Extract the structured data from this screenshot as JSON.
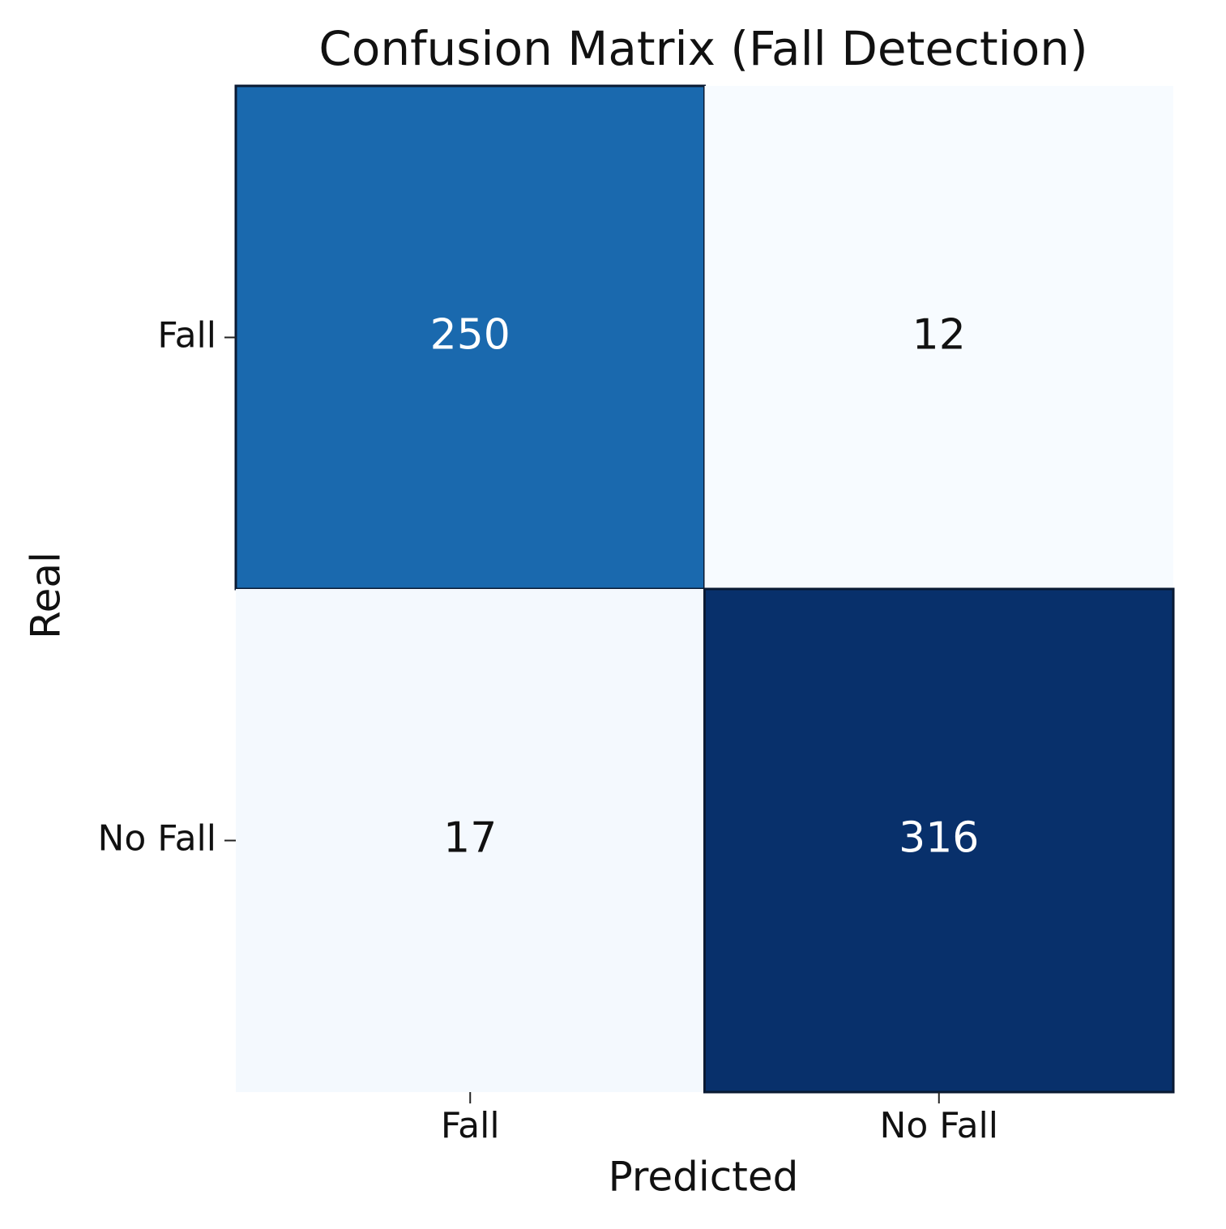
{
  "chart_data": {
    "type": "heatmap",
    "title": "Confusion Matrix (Fall Detection)",
    "x_label": "Predicted",
    "y_label": "Real",
    "x_categories": [
      "Fall",
      "No Fall"
    ],
    "y_categories": [
      "Fall",
      "No Fall"
    ],
    "values": [
      [
        250,
        12
      ],
      [
        17,
        316
      ]
    ],
    "colormap": "Blues"
  }
}
